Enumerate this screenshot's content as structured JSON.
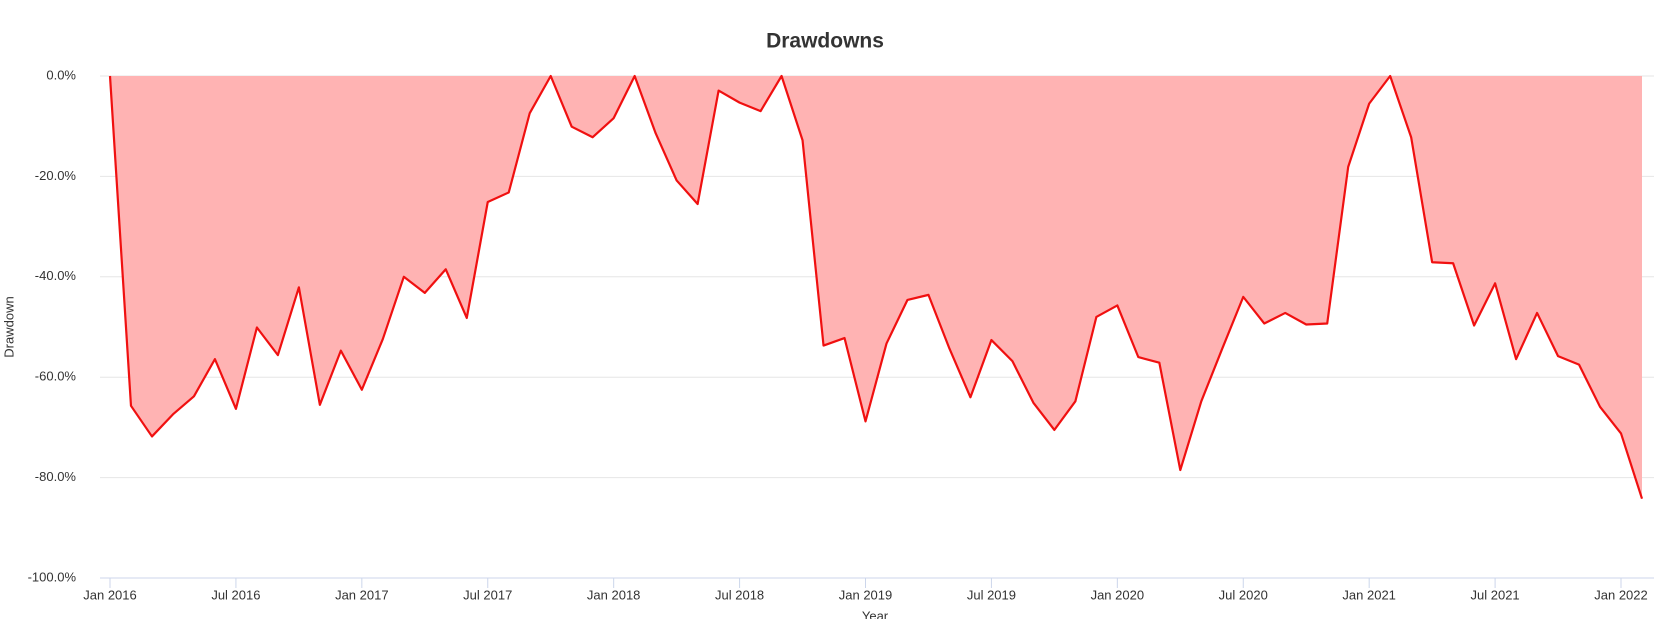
{
  "chart_data": {
    "type": "area",
    "title": "Drawdowns",
    "xlabel": "Year",
    "ylabel": "Drawdown",
    "x": [
      "2016-01",
      "2016-02",
      "2016-03",
      "2016-04",
      "2016-05",
      "2016-06",
      "2016-07",
      "2016-08",
      "2016-09",
      "2016-10",
      "2016-11",
      "2016-12",
      "2017-01",
      "2017-02",
      "2017-03",
      "2017-04",
      "2017-05",
      "2017-06",
      "2017-07",
      "2017-08",
      "2017-09",
      "2017-10",
      "2017-11",
      "2017-12",
      "2018-01",
      "2018-02",
      "2018-03",
      "2018-04",
      "2018-05",
      "2018-06",
      "2018-07",
      "2018-08",
      "2018-09",
      "2018-10",
      "2018-11",
      "2018-12",
      "2019-01",
      "2019-02",
      "2019-03",
      "2019-04",
      "2019-05",
      "2019-06",
      "2019-07",
      "2019-08",
      "2019-09",
      "2019-10",
      "2019-11",
      "2019-12",
      "2020-01",
      "2020-02",
      "2020-03",
      "2020-04",
      "2020-05",
      "2020-06",
      "2020-07",
      "2020-08",
      "2020-09",
      "2020-10",
      "2020-11",
      "2020-12",
      "2021-01",
      "2021-02",
      "2021-03",
      "2021-04",
      "2021-05",
      "2021-06",
      "2021-07",
      "2021-08",
      "2021-09",
      "2021-10",
      "2021-11",
      "2021-12",
      "2022-01",
      "2022-02"
    ],
    "series": [
      {
        "name": "Drawdown",
        "color": "#f01010",
        "fill": "#ffb3b3",
        "values": [
          0,
          -65.7,
          -71.8,
          -67.4,
          -63.8,
          -56.4,
          -66.3,
          -50.1,
          -55.6,
          -42.1,
          -65.5,
          -54.7,
          -62.5,
          -52.4,
          -40.0,
          -43.2,
          -38.5,
          -48.2,
          -25.1,
          -23.2,
          -7.4,
          0,
          -10.1,
          -12.2,
          -8.4,
          0,
          -11.4,
          -20.8,
          -25.5,
          -2.9,
          -5.3,
          -7.0,
          0,
          -12.8,
          -53.7,
          -52.2,
          -68.8,
          -53.3,
          -44.6,
          -43.6,
          -54.3,
          -64.0,
          -52.6,
          -56.8,
          -65.1,
          -70.5,
          -64.8,
          -48.0,
          -45.7,
          -56.0,
          -57.1,
          -78.5,
          -64.8,
          -54.3,
          -44.0,
          -49.3,
          -47.2,
          -49.5,
          -49.3,
          -18.1,
          -5.5,
          0,
          -12.2,
          -37.1,
          -37.3,
          -49.7,
          -41.3,
          -56.4,
          -47.2,
          -55.8,
          -57.5,
          -65.9,
          -71.2,
          -84.2
        ]
      }
    ],
    "ylim": [
      -100,
      0
    ],
    "yticks": [
      {
        "value": 0,
        "label": "0.0%"
      },
      {
        "value": -20,
        "label": "-20.0%"
      },
      {
        "value": -40,
        "label": "-40.0%"
      },
      {
        "value": -60,
        "label": "-60.0%"
      },
      {
        "value": -80,
        "label": "-80.0%"
      },
      {
        "value": -100,
        "label": "-100.0%"
      }
    ],
    "xticks": [
      {
        "value": "2016-01",
        "label": "Jan 2016"
      },
      {
        "value": "2016-07",
        "label": "Jul 2016"
      },
      {
        "value": "2017-01",
        "label": "Jan 2017"
      },
      {
        "value": "2017-07",
        "label": "Jul 2017"
      },
      {
        "value": "2018-01",
        "label": "Jan 2018"
      },
      {
        "value": "2018-07",
        "label": "Jul 2018"
      },
      {
        "value": "2019-01",
        "label": "Jan 2019"
      },
      {
        "value": "2019-07",
        "label": "Jul 2019"
      },
      {
        "value": "2020-01",
        "label": "Jan 2020"
      },
      {
        "value": "2020-07",
        "label": "Jul 2020"
      },
      {
        "value": "2021-01",
        "label": "Jan 2021"
      },
      {
        "value": "2021-07",
        "label": "Jul 2021"
      },
      {
        "value": "2022-01",
        "label": "Jan 2022"
      }
    ],
    "grid": true
  }
}
